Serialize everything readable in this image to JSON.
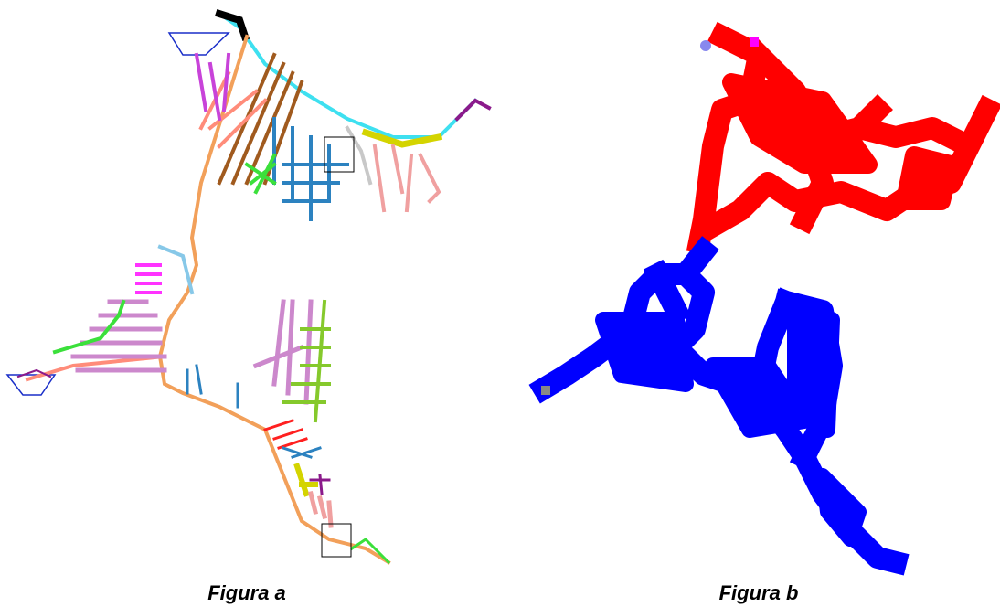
{
  "figures": [
    {
      "caption": "Figura a"
    },
    {
      "caption": "Figura b"
    }
  ]
}
